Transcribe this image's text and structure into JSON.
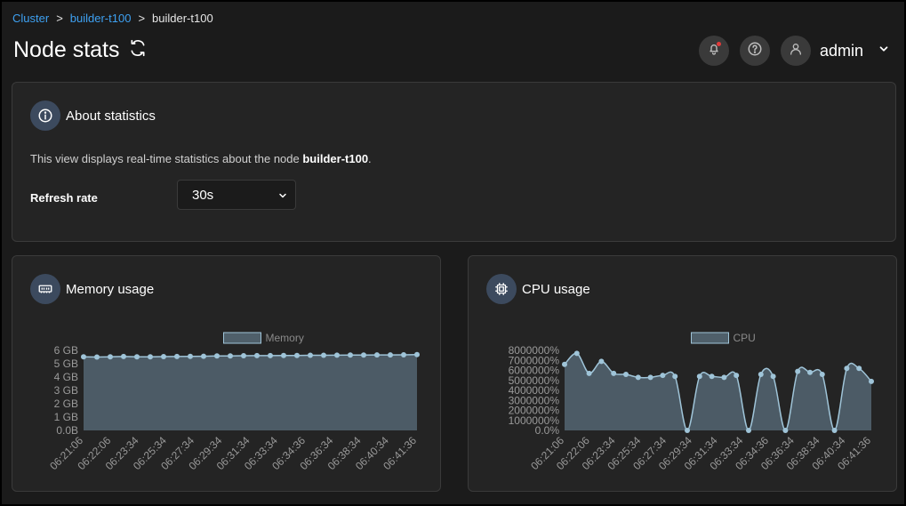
{
  "breadcrumb": {
    "items": [
      "Cluster",
      "builder-t100",
      "builder-t100"
    ],
    "separator": ">"
  },
  "page": {
    "title": "Node stats"
  },
  "header": {
    "user": "admin",
    "icons": [
      "bell-icon",
      "help-icon",
      "user-icon",
      "chevron-down-icon"
    ]
  },
  "about": {
    "title": "About statistics",
    "text_prefix": "This view displays real-time statistics about the node ",
    "node_name": "builder-t100",
    "text_suffix": ".",
    "refresh_label": "Refresh rate",
    "refresh_value": "30s"
  },
  "memory_card": {
    "title": "Memory usage"
  },
  "cpu_card": {
    "title": "CPU usage"
  },
  "colors": {
    "accent": "#3ea1f2",
    "fill": "#4f5f6a",
    "line": "#9fc4d8",
    "card": "#242424"
  },
  "chart_data": [
    {
      "type": "area",
      "legend": [
        "Memory"
      ],
      "y_ticks": [
        "0.0B",
        "1 GB",
        "2 GB",
        "3 GB",
        "4 GB",
        "5 GB",
        "6 GB"
      ],
      "x_ticks": [
        "06:21:06",
        "06:22:06",
        "06:23:34",
        "06:25:34",
        "06:27:34",
        "06:29:34",
        "06:31:34",
        "06:33:34",
        "06:34:36",
        "06:36:34",
        "06:38:34",
        "06:40:34",
        "06:41:36"
      ],
      "ylim": [
        0,
        6
      ],
      "series": [
        {
          "name": "Memory",
          "values": [
            5.52,
            5.5,
            5.52,
            5.54,
            5.52,
            5.52,
            5.53,
            5.54,
            5.55,
            5.56,
            5.58,
            5.58,
            5.6,
            5.61,
            5.61,
            5.62,
            5.62,
            5.63,
            5.63,
            5.64,
            5.65,
            5.65,
            5.66,
            5.66,
            5.67,
            5.68
          ]
        }
      ]
    },
    {
      "type": "area",
      "legend": [
        "CPU"
      ],
      "y_ticks": [
        "0.0%",
        "1000000%",
        "2000000%",
        "3000000%",
        "4000000%",
        "5000000%",
        "6000000%",
        "7000000%",
        "8000000%"
      ],
      "x_ticks": [
        "06:21:06",
        "06:22:06",
        "06:23:34",
        "06:25:34",
        "06:27:34",
        "06:29:34",
        "06:31:34",
        "06:33:34",
        "06:34:36",
        "06:36:34",
        "06:38:34",
        "06:40:34",
        "06:41:36"
      ],
      "ylim": [
        0,
        8000000
      ],
      "series": [
        {
          "name": "CPU",
          "values": [
            6600000,
            7700000,
            5700000,
            6900000,
            5700000,
            5600000,
            5300000,
            5300000,
            5500000,
            5400000,
            0,
            5400000,
            5400000,
            5300000,
            5500000,
            0,
            5600000,
            5400000,
            0,
            5900000,
            5800000,
            5600000,
            0,
            6200000,
            6200000,
            4900000
          ]
        }
      ]
    }
  ]
}
